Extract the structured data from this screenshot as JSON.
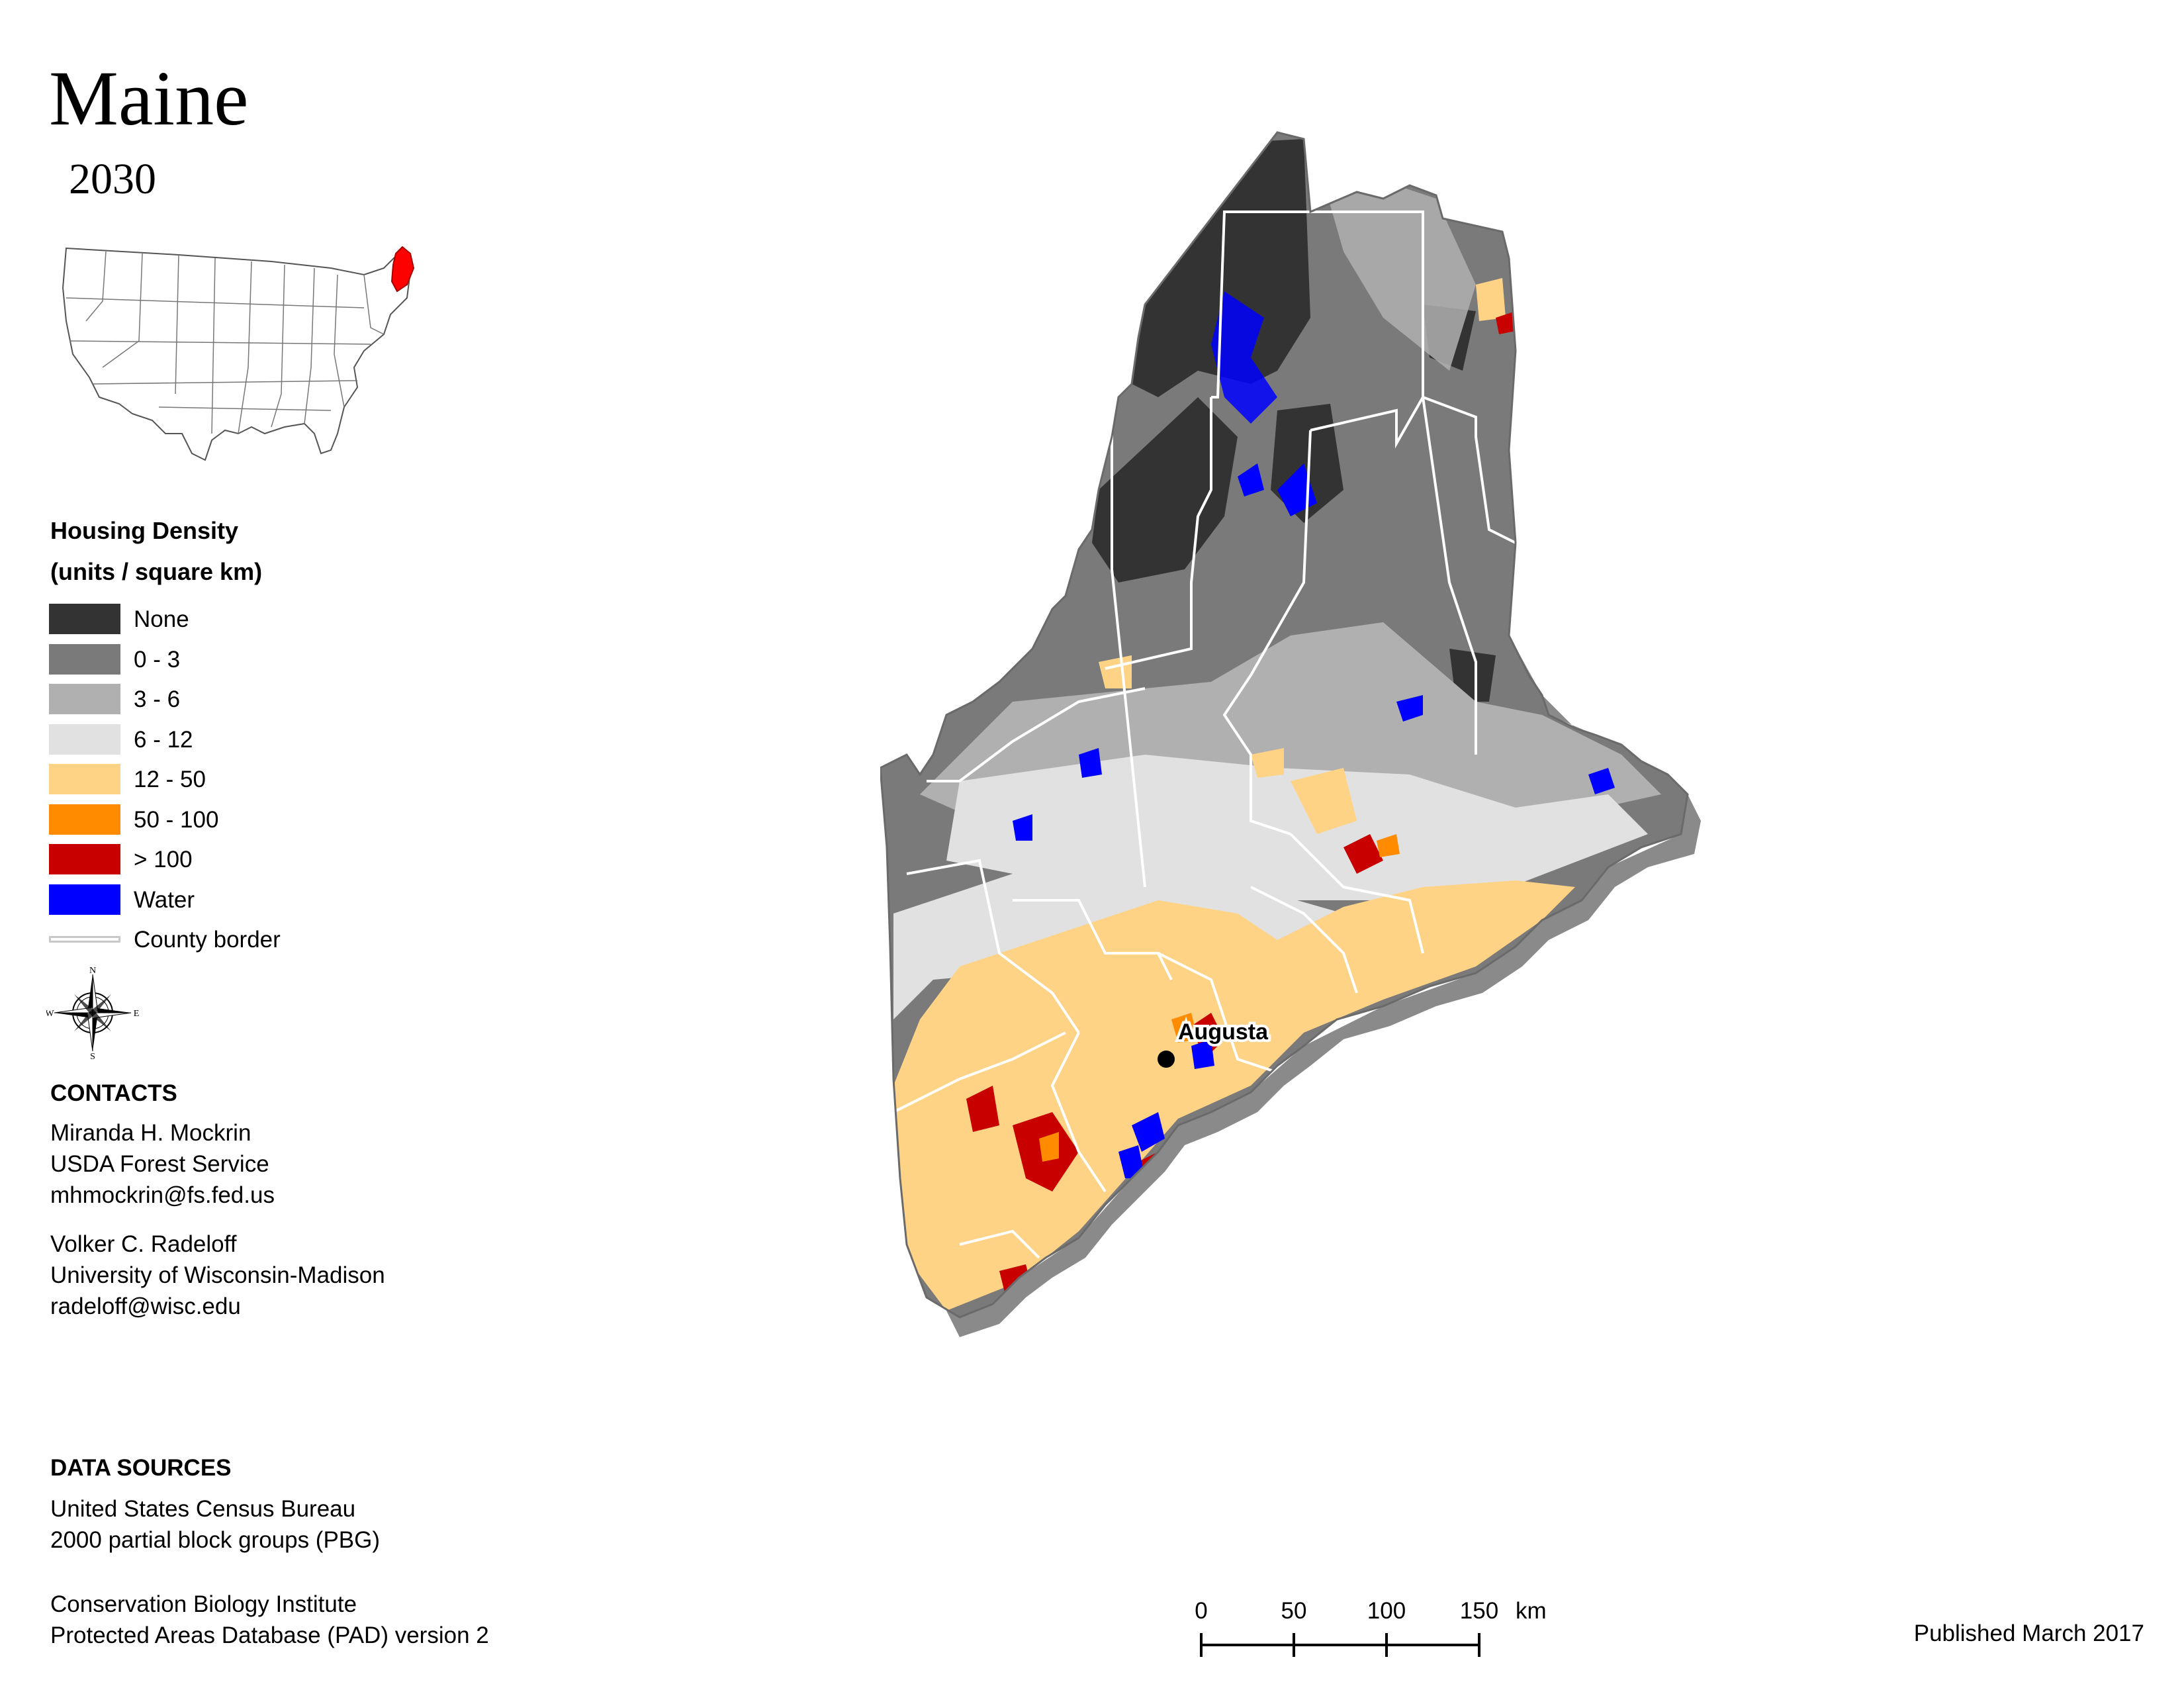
{
  "title": "Maine",
  "subtitle": "2030",
  "inset": {
    "highlight_state": "Maine",
    "highlight_color": "#ff0000"
  },
  "legend": {
    "title": "Housing Density",
    "subtitle": "(units / square km)",
    "items": [
      {
        "label": "None",
        "color": "#333333"
      },
      {
        "label": "0 - 3",
        "color": "#7a7a7a"
      },
      {
        "label": "3 - 6",
        "color": "#b0b0b0"
      },
      {
        "label": "6 - 12",
        "color": "#e1e1e1"
      },
      {
        "label": "12 - 50",
        "color": "#ffd386"
      },
      {
        "label": "50 - 100",
        "color": "#ff8c00"
      },
      {
        "label": "> 100",
        "color": "#c80000"
      },
      {
        "label": "Water",
        "color": "#0000ff"
      }
    ],
    "border_label": "County border"
  },
  "compass": {
    "n": "N",
    "s": "S",
    "e": "E",
    "w": "W"
  },
  "contacts": {
    "heading": "CONTACTS",
    "people": [
      {
        "name": "Miranda H. Mockrin",
        "org": "USDA Forest Service",
        "email": "mhmockrin@fs.fed.us"
      },
      {
        "name": "Volker C. Radeloff",
        "org": "University of Wisconsin-Madison",
        "email": "radeloff@wisc.edu"
      }
    ]
  },
  "data_sources": {
    "heading": "DATA SOURCES",
    "sources": [
      {
        "line1": "United States Census Bureau",
        "line2": "2000 partial block groups (PBG)"
      },
      {
        "line1": "Conservation Biology Institute",
        "line2": "Protected Areas Database (PAD) version 2"
      }
    ]
  },
  "scale": {
    "ticks": [
      "0",
      "50",
      "100",
      "150"
    ],
    "unit": "km"
  },
  "city": {
    "name": "Augusta"
  },
  "published": "Published March 2017"
}
